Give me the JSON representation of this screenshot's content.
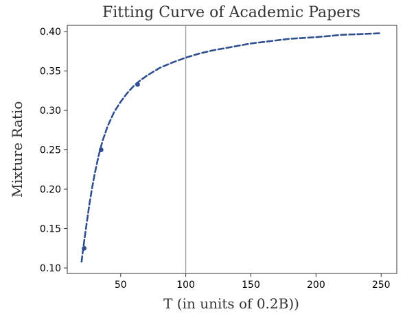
{
  "chart_data": {
    "type": "line",
    "title": "Fitting Curve of Academic Papers",
    "xlabel": "T (in units of 0.2B))",
    "ylabel": "Mixture Ratio",
    "xlim": [
      9,
      262
    ],
    "ylim": [
      0.093,
      0.408
    ],
    "xticks": [
      50,
      100,
      150,
      200,
      250
    ],
    "yticks": [
      0.1,
      0.15,
      0.2,
      0.25,
      0.3,
      0.35,
      0.4
    ],
    "xtick_labels": [
      "50",
      "100",
      "150",
      "200",
      "250"
    ],
    "ytick_labels": [
      "0.10",
      "0.15",
      "0.20",
      "0.25",
      "0.30",
      "0.35",
      "0.40"
    ],
    "vertical_line_x": 100,
    "grid": false,
    "series": [
      {
        "kind": "fit",
        "style": "dashed",
        "color": "#2f4f8f",
        "x": [
          20,
          21,
          22,
          24,
          26,
          28,
          30,
          33,
          36,
          40,
          45,
          50,
          55,
          60,
          65,
          70,
          80,
          90,
          100,
          110,
          120,
          130,
          140,
          150,
          165,
          180,
          200,
          220,
          235,
          250
        ],
        "y": [
          0.108,
          0.122,
          0.134,
          0.158,
          0.181,
          0.201,
          0.219,
          0.242,
          0.261,
          0.28,
          0.298,
          0.311,
          0.322,
          0.331,
          0.338,
          0.344,
          0.354,
          0.361,
          0.367,
          0.372,
          0.376,
          0.379,
          0.382,
          0.385,
          0.388,
          0.391,
          0.393,
          0.396,
          0.397,
          0.398
        ]
      },
      {
        "kind": "observed",
        "style": "markers",
        "color": "#2f4f8f",
        "x": [
          22,
          35,
          63
        ],
        "y": [
          0.125,
          0.25,
          0.333
        ]
      }
    ]
  }
}
